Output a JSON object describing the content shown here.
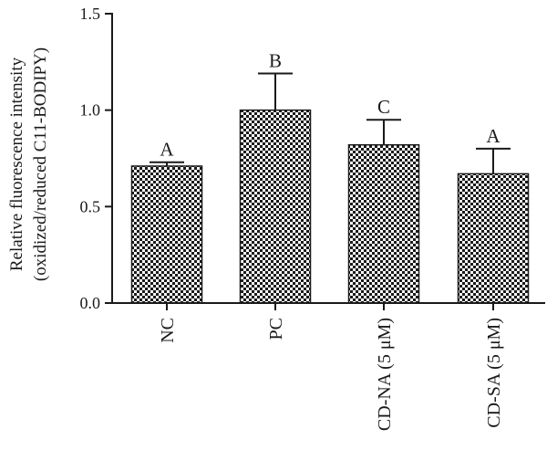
{
  "chart_data": {
    "type": "bar",
    "title": "",
    "xlabel": "",
    "ylabel": [
      "Relative fluorescence intensity",
      "(oxidized/reduced C11-BODIPY)"
    ],
    "ylim": [
      0,
      1.5
    ],
    "yticks": [
      "0.0",
      "0.5",
      "1.0",
      "1.5"
    ],
    "ytick_values": [
      0,
      0.5,
      1.0,
      1.5
    ],
    "grid": false,
    "legend": "none",
    "bar_fill": "checkered",
    "bar_color": "#1a1a1a",
    "categories": [
      "NC",
      "PC",
      "CD-NA (5 μM)",
      "CD-SA (5 μM)"
    ],
    "values": [
      0.71,
      1.0,
      0.82,
      0.67
    ],
    "error_upper": [
      0.02,
      0.19,
      0.13,
      0.13
    ],
    "significance_labels": [
      "A",
      "B",
      "C",
      "A"
    ]
  }
}
